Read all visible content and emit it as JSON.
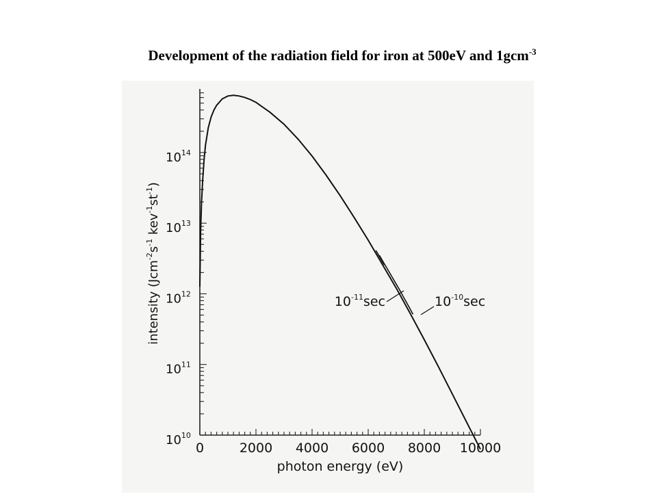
{
  "slide": {
    "title": "Development of the radiation field for iron at 500eV and 1gcm",
    "title_exponent": "-3"
  },
  "chart_data": {
    "type": "line",
    "title": "",
    "xlabel": "photon energy (eV)",
    "ylabel_parts": [
      "intensity (Jcm",
      "-2",
      "s",
      "-1",
      " kev",
      "-1",
      "st",
      "-1",
      ")"
    ],
    "xlim": [
      0,
      10000
    ],
    "ylim_log10": [
      10,
      14.9
    ],
    "y_scale": "log",
    "x_ticks": [
      {
        "value": 0,
        "label": "0"
      },
      {
        "value": 2000,
        "label": "2000"
      },
      {
        "value": 4000,
        "label": "4000"
      },
      {
        "value": 6000,
        "label": "6000"
      },
      {
        "value": 8000,
        "label": "8000"
      },
      {
        "value": 10000,
        "label": "10000"
      }
    ],
    "y_ticks": [
      {
        "exp": 10,
        "base": "10",
        "sup": "10"
      },
      {
        "exp": 11,
        "base": "10",
        "sup": "11"
      },
      {
        "exp": 12,
        "base": "10",
        "sup": "12"
      },
      {
        "exp": 13,
        "base": "10",
        "sup": "13"
      },
      {
        "exp": 14,
        "base": "10",
        "sup": "14"
      }
    ],
    "series": [
      {
        "x": [
          0,
          30,
          60,
          100,
          150,
          200,
          300,
          400,
          500,
          600,
          800,
          1000,
          1200,
          1400,
          1600,
          1800,
          2000,
          2500,
          3000,
          3500,
          4000,
          4500,
          5000,
          5500,
          6000,
          6500,
          7000,
          7500,
          8000,
          8500,
          9000,
          9500,
          10000
        ],
        "log10_y": [
          12.1,
          12.9,
          13.3,
          13.6,
          13.9,
          14.1,
          14.35,
          14.5,
          14.6,
          14.67,
          14.76,
          14.8,
          14.81,
          14.8,
          14.78,
          14.75,
          14.71,
          14.57,
          14.4,
          14.19,
          13.95,
          13.68,
          13.39,
          13.08,
          12.76,
          12.42,
          12.08,
          11.72,
          11.35,
          10.97,
          10.58,
          10.19,
          9.8
        ]
      }
    ],
    "annotations": [
      {
        "base": "10",
        "sup": "-11",
        "unit": "sec"
      },
      {
        "base": "10",
        "sup": "-10",
        "unit": "sec"
      }
    ],
    "grid": false,
    "legend": "none"
  }
}
